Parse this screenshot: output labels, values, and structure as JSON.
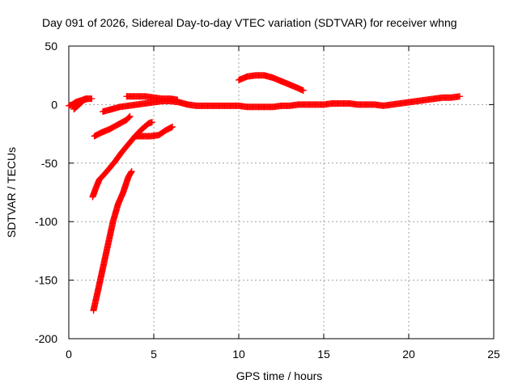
{
  "chart_data": {
    "type": "scatter",
    "title": "Day 091 of 2026, Sidereal Day-to-day VTEC variation (SDTVAR) for receiver whng",
    "xlabel": "GPS time / hours",
    "ylabel": "SDTVAR / TECUs",
    "xlim": [
      0,
      25
    ],
    "ylim": [
      -200,
      50
    ],
    "xticks": [
      0,
      5,
      10,
      15,
      20,
      25
    ],
    "yticks": [
      -200,
      -150,
      -100,
      -50,
      0,
      50
    ],
    "grid": true,
    "legend": "none",
    "series": [
      {
        "name": "SDTVAR",
        "color": "#ff0000",
        "marker": "plus",
        "segments": [
          [
            [
              0.0,
              -1
            ],
            [
              0.2,
              0
            ],
            [
              0.4,
              2
            ],
            [
              0.6,
              3
            ],
            [
              0.8,
              4
            ],
            [
              1.0,
              5
            ],
            [
              1.2,
              5
            ],
            [
              1.35,
              5
            ]
          ],
          [
            [
              0.3,
              -4
            ],
            [
              0.45,
              -2
            ],
            [
              0.6,
              0
            ],
            [
              0.75,
              2
            ],
            [
              0.9,
              4
            ],
            [
              1.1,
              5
            ]
          ],
          [
            [
              1.5,
              -27
            ],
            [
              1.9,
              -24
            ],
            [
              2.4,
              -21
            ],
            [
              2.9,
              -17
            ],
            [
              3.4,
              -13
            ],
            [
              3.6,
              -10
            ]
          ],
          [
            [
              1.4,
              -79
            ],
            [
              1.6,
              -71
            ],
            [
              1.8,
              -64
            ],
            [
              2.0,
              -61
            ],
            [
              2.3,
              -56
            ],
            [
              2.7,
              -49
            ],
            [
              3.1,
              -41
            ],
            [
              3.5,
              -34
            ],
            [
              3.9,
              -27
            ],
            [
              4.3,
              -21
            ],
            [
              4.7,
              -16
            ],
            [
              4.9,
              -15
            ]
          ],
          [
            [
              1.45,
              -176
            ],
            [
              1.7,
              -160
            ],
            [
              2.0,
              -140
            ],
            [
              2.3,
              -120
            ],
            [
              2.6,
              -100
            ],
            [
              2.9,
              -85
            ],
            [
              3.2,
              -75
            ],
            [
              3.5,
              -62
            ],
            [
              3.7,
              -57
            ]
          ],
          [
            [
              3.9,
              -27
            ],
            [
              4.3,
              -27
            ],
            [
              4.8,
              -27
            ],
            [
              5.3,
              -26
            ],
            [
              5.7,
              -22
            ],
            [
              6.1,
              -19
            ]
          ],
          [
            [
              2.0,
              -6
            ],
            [
              2.5,
              -4
            ],
            [
              3.0,
              -2
            ],
            [
              3.5,
              -1
            ],
            [
              4.0,
              0
            ],
            [
              4.5,
              1
            ],
            [
              5.0,
              2
            ],
            [
              5.5,
              3
            ],
            [
              6.0,
              3
            ],
            [
              6.5,
              2
            ]
          ],
          [
            [
              3.4,
              7
            ],
            [
              4.0,
              7
            ],
            [
              4.5,
              7
            ],
            [
              5.0,
              6
            ],
            [
              5.5,
              5
            ],
            [
              6.0,
              5
            ],
            [
              6.4,
              4
            ]
          ],
          [
            [
              6.5,
              2
            ],
            [
              7.0,
              0
            ],
            [
              7.5,
              -1
            ],
            [
              8.0,
              -1
            ],
            [
              8.5,
              -1
            ],
            [
              9.0,
              -1
            ],
            [
              9.5,
              -1
            ],
            [
              10.0,
              -1
            ],
            [
              10.5,
              -2
            ],
            [
              11.0,
              -2
            ],
            [
              11.5,
              -2
            ],
            [
              12.0,
              -2
            ],
            [
              12.5,
              -1
            ],
            [
              13.0,
              -1
            ],
            [
              13.5,
              0
            ],
            [
              14.0,
              0
            ],
            [
              14.5,
              0
            ],
            [
              15.0,
              0
            ],
            [
              15.5,
              1
            ],
            [
              16.0,
              1
            ],
            [
              16.5,
              1
            ],
            [
              17.0,
              0
            ],
            [
              17.5,
              0
            ],
            [
              18.0,
              0
            ],
            [
              18.5,
              -1
            ],
            [
              19.0,
              0
            ],
            [
              19.5,
              1
            ],
            [
              20.0,
              2
            ],
            [
              20.5,
              3
            ],
            [
              21.0,
              4
            ],
            [
              21.5,
              5
            ],
            [
              22.0,
              6
            ],
            [
              22.5,
              6
            ],
            [
              23.0,
              7
            ]
          ],
          [
            [
              10.0,
              21
            ],
            [
              10.5,
              24
            ],
            [
              11.0,
              25
            ],
            [
              11.5,
              25
            ],
            [
              12.0,
              23
            ],
            [
              12.5,
              20
            ],
            [
              13.0,
              17
            ],
            [
              13.5,
              14
            ],
            [
              13.8,
              12
            ]
          ]
        ]
      }
    ]
  }
}
